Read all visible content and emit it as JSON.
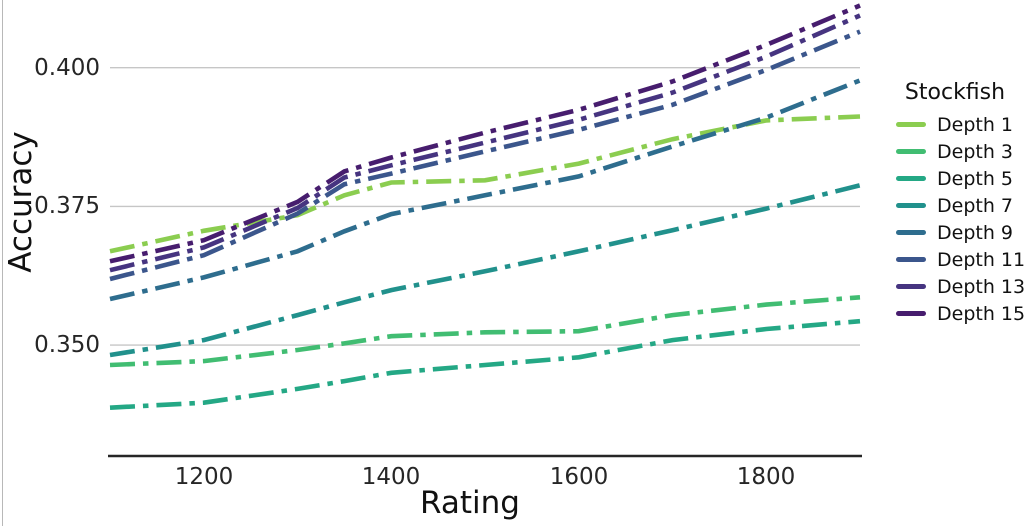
{
  "figure": {
    "background": "#ffffff",
    "gridline_color": "#c6c6c6",
    "spine_color": "#262626",
    "text_color": "#111111"
  },
  "chart_data": {
    "type": "line",
    "title": "",
    "xlabel": "Rating",
    "ylabel": "Accuracy",
    "legend_title": "Stockfish",
    "legend_position": "right",
    "grid": "horizontal-only",
    "line_style": "dash-dot",
    "xlim": [
      1100,
      1900
    ],
    "ylim": [
      0.33,
      0.4122
    ],
    "x_ticks": [
      1200,
      1400,
      1600,
      1800
    ],
    "x_tick_labels": [
      "1200",
      "1400",
      "1600",
      "1800"
    ],
    "y_ticks": [
      0.4,
      0.375,
      0.35
    ],
    "y_tick_labels": [
      "0.400",
      "0.375",
      "0.350"
    ],
    "x": [
      1100,
      1200,
      1300,
      1350,
      1400,
      1500,
      1600,
      1700,
      1800,
      1900
    ],
    "series": [
      {
        "name": "Depth 1",
        "color": "#8bcd50",
        "values": [
          0.3669,
          0.3706,
          0.3734,
          0.377,
          0.3793,
          0.3797,
          0.3827,
          0.3871,
          0.3905,
          0.3912
        ]
      },
      {
        "name": "Depth 3",
        "color": "#41bd72",
        "values": [
          0.3464,
          0.3471,
          0.3491,
          0.3503,
          0.3516,
          0.3523,
          0.3525,
          0.3554,
          0.3573,
          0.3586
        ]
      },
      {
        "name": "Depth 5",
        "color": "#24a885",
        "values": [
          0.3387,
          0.3396,
          0.3421,
          0.3435,
          0.345,
          0.3464,
          0.3478,
          0.3509,
          0.3529,
          0.3543
        ]
      },
      {
        "name": "Depth 7",
        "color": "#21918c",
        "values": [
          0.3482,
          0.3509,
          0.3554,
          0.3577,
          0.3599,
          0.3633,
          0.3669,
          0.3707,
          0.3746,
          0.3788
        ]
      },
      {
        "name": "Depth 9",
        "color": "#2e6d8e",
        "values": [
          0.3583,
          0.3622,
          0.3669,
          0.3705,
          0.3736,
          0.377,
          0.3804,
          0.3858,
          0.391,
          0.3977
        ]
      },
      {
        "name": "Depth 11",
        "color": "#3b568c",
        "values": [
          0.3619,
          0.3662,
          0.3737,
          0.379,
          0.3809,
          0.3849,
          0.3888,
          0.3933,
          0.3996,
          0.4065
        ]
      },
      {
        "name": "Depth 13",
        "color": "#463480",
        "values": [
          0.3635,
          0.3676,
          0.3747,
          0.3802,
          0.3824,
          0.3865,
          0.3906,
          0.3955,
          0.402,
          0.4094
        ]
      },
      {
        "name": "Depth 15",
        "color": "#471d6e",
        "values": [
          0.3651,
          0.3689,
          0.3758,
          0.3813,
          0.3838,
          0.3883,
          0.3924,
          0.3975,
          0.4041,
          0.4112
        ]
      }
    ]
  }
}
